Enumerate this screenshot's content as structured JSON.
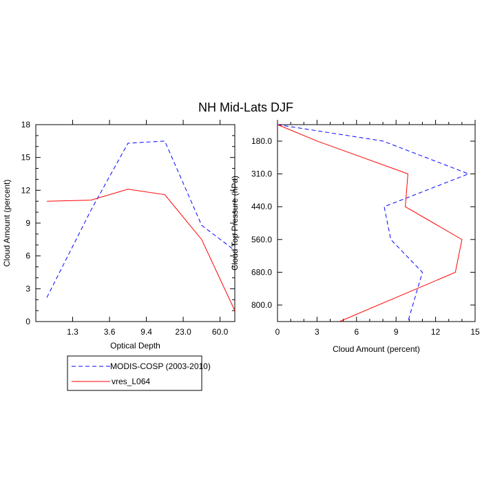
{
  "title": "NH Mid-Lats DJF",
  "chart_data": [
    {
      "type": "line",
      "xlabel": "Optical Depth",
      "ylabel": "Cloud Amount (percent)",
      "x_tick_labels": [
        "1.3",
        "3.6",
        "9.4",
        "23.0",
        "60.0"
      ],
      "y_ticks": [
        0,
        3,
        6,
        9,
        12,
        15,
        18
      ],
      "y_tick_labels": [
        "0",
        "3",
        "6",
        "9",
        "12",
        "15",
        "18"
      ],
      "ylim": [
        0,
        18
      ],
      "x_positions": [
        0.3,
        1.5,
        2.5,
        3.5,
        4.5,
        5.4
      ],
      "series": [
        {
          "name": "MODIS-COSP (2003-2010)",
          "color": "#0000ff",
          "dash": "dashed",
          "values": [
            2.2,
            10.2,
            16.3,
            16.5,
            8.8,
            6.5
          ]
        },
        {
          "name": "vres_L064",
          "color": "#ff0000",
          "dash": "solid",
          "values": [
            11.0,
            11.1,
            12.1,
            11.6,
            7.5,
            1.0
          ]
        }
      ]
    },
    {
      "type": "line",
      "xlabel": "Cloud Amount (percent)",
      "ylabel": "Cloud Top Pressure (hPa)",
      "x_ticks": [
        0,
        3,
        6,
        9,
        12,
        15
      ],
      "x_tick_labels": [
        "0",
        "3",
        "6",
        "9",
        "12",
        "15"
      ],
      "xlim": [
        0,
        15
      ],
      "y_tick_labels": [
        "180.0",
        "310.0",
        "440.0",
        "560.0",
        "680.0",
        "800.0"
      ],
      "y_positions": [
        0,
        1,
        2,
        3,
        4,
        5,
        6
      ],
      "series": [
        {
          "name": "MODIS-COSP (2003-2010)",
          "color": "#0000ff",
          "dash": "dashed",
          "values": [
            0.0,
            8.0,
            14.5,
            8.1,
            8.6,
            11.0,
            9.9
          ]
        },
        {
          "name": "vres_L064",
          "color": "#ff0000",
          "dash": "solid",
          "values": [
            0.0,
            3.0,
            9.9,
            9.7,
            14.0,
            13.5,
            4.7
          ]
        }
      ]
    }
  ],
  "legend": {
    "entries": [
      {
        "label": "MODIS-COSP (2003-2010)",
        "color": "#0000ff",
        "dash": "dashed"
      },
      {
        "label": "vres_L064",
        "color": "#ff0000",
        "dash": "solid"
      }
    ]
  }
}
